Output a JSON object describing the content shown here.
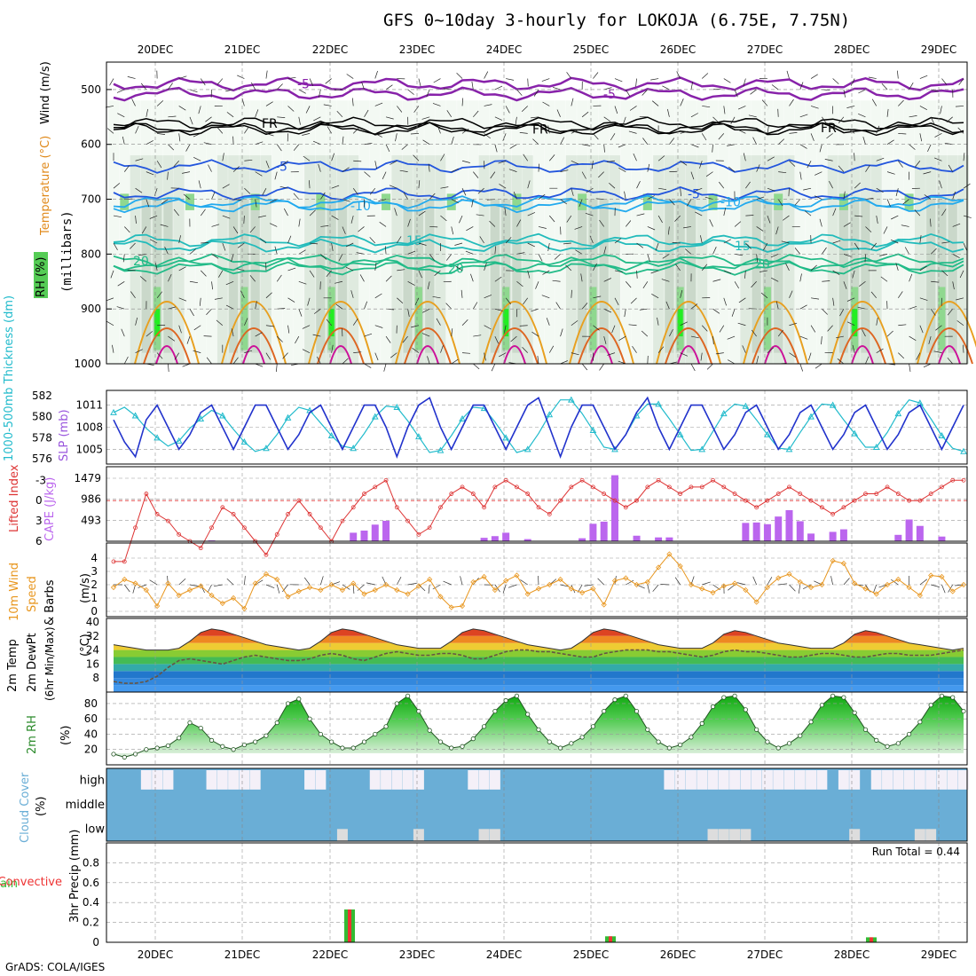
{
  "title": "GFS 0~10day 3-hourly for LOKOJA (6.75E, 7.75N)",
  "footer": "GrADS: COLA/IGES",
  "run_total_label": "Run Total = 0.44",
  "colors": {
    "slp": "#2233cc",
    "thickness": "#22bbcc",
    "lifted_index": "#dd3333",
    "cape": "#bb66ee",
    "wind": "#e8961e",
    "rh_line": "#2a8a2a",
    "cloud": "#6aaed6",
    "cloud_clear": "#f4f0f8",
    "precip_total": "#33bb33",
    "precip_conv": "#ee3333"
  },
  "chart_data": [
    {
      "panel": "upper-air",
      "type": "contour-timeseries",
      "ylabels": [
        "RH (%)",
        "Temperature (°C)",
        "Wind (m/s)",
        "(millibars)"
      ],
      "x_dates": [
        "20DEC",
        "21DEC",
        "22DEC",
        "23DEC",
        "24DEC",
        "25DEC",
        "26DEC",
        "27DEC",
        "28DEC",
        "29DEC"
      ],
      "y_ticks": [
        500,
        600,
        700,
        800,
        900,
        1000
      ],
      "ylim": [
        450,
        1000
      ],
      "isotherm_labels": [
        "-5",
        "-5",
        "FR",
        "FR",
        "FR",
        "-5",
        "-5",
        "-10",
        "-10",
        "15",
        "15",
        "20",
        "20",
        "20"
      ]
    },
    {
      "panel": "slp-thickness",
      "type": "line",
      "ylabel_left": "1000-500mb Thickness (dm)",
      "ylabel_right": "SLP (mb)",
      "left_ticks": [
        576,
        578,
        580,
        582
      ],
      "right_ticks": [
        1005,
        1008,
        1011
      ],
      "slp": [
        1009,
        1006,
        1004,
        1009,
        1011,
        1008,
        1005,
        1007,
        1010,
        1011,
        1008,
        1005,
        1008,
        1011,
        1011,
        1008,
        1005,
        1007,
        1010,
        1011,
        1008,
        1005,
        1008,
        1011,
        1011,
        1008,
        1004,
        1008,
        1011,
        1012,
        1008,
        1005,
        1008,
        1011,
        1011,
        1008,
        1005,
        1008,
        1011,
        1012,
        1008,
        1004,
        1008,
        1011,
        1011,
        1008,
        1005,
        1007,
        1010,
        1012,
        1008,
        1005,
        1008,
        1011,
        1011,
        1008,
        1005,
        1007,
        1010,
        1011,
        1008,
        1005,
        1007,
        1010,
        1011,
        1008,
        1005,
        1007,
        1010,
        1011,
        1008,
        1005,
        1007,
        1010,
        1011,
        1008,
        1005,
        1008,
        1011
      ],
      "thickness": [
        580.4,
        580.9,
        580.1,
        578.9,
        578.0,
        577.2,
        577.7,
        578.9,
        579.8,
        580.6,
        580.1,
        578.8,
        577.6,
        576.7,
        577.0,
        578.3,
        579.9,
        580.9,
        580.6,
        579.4,
        578.2,
        577.2,
        577.0,
        578.4,
        580.0,
        581.0,
        580.9,
        579.6,
        578.1,
        576.6,
        576.8,
        578.2,
        579.8,
        580.9,
        580.8,
        579.5,
        578.0,
        576.6,
        576.9,
        578.4,
        580.2,
        581.6,
        581.6,
        580.3,
        578.7,
        577.1,
        576.9,
        578.3,
        580.1,
        581.2,
        581.2,
        579.8,
        578.3,
        576.8,
        576.9,
        578.6,
        580.3,
        581.2,
        581.0,
        579.7,
        578.3,
        577.0,
        576.9,
        578.5,
        580.0,
        581.2,
        581.1,
        579.7,
        578.4,
        577.1,
        577.1,
        578.5,
        580.3,
        581.6,
        581.3,
        579.8,
        578.2,
        577.0,
        576.7
      ]
    },
    {
      "panel": "cape-li",
      "type": "bar+line",
      "ylabel_left": "Lifted Index",
      "ylabel_right": "CAPE (J/kg)",
      "li_ticks": [
        -3,
        0,
        3,
        6
      ],
      "cape_ticks": [
        493,
        986,
        1479
      ],
      "cape": [
        0,
        0,
        0,
        0,
        0,
        0,
        0,
        0,
        0,
        0,
        0,
        20,
        0,
        0,
        0,
        0,
        0,
        0,
        0,
        0,
        0,
        0,
        130,
        180,
        0,
        0,
        0,
        0,
        0,
        0,
        0,
        0,
        0,
        0,
        0,
        0,
        0,
        0,
        0,
        0,
        0,
        0,
        0,
        0,
        0,
        0,
        0,
        0,
        0,
        0,
        0,
        0,
        0,
        0,
        0,
        0,
        0,
        0,
        0,
        0,
        0,
        0,
        0,
        0,
        0,
        0,
        0,
        0,
        0,
        0,
        0,
        0,
        0,
        0,
        0,
        0,
        0,
        0,
        0
      ],
      "li": [
        9,
        9,
        4,
        -1,
        2,
        3,
        5,
        6,
        7,
        4,
        1,
        2,
        4,
        6,
        8,
        5,
        2,
        0,
        2,
        4,
        6,
        3,
        1,
        -1,
        -2,
        -3,
        1,
        3,
        5,
        4,
        1,
        -1,
        -2,
        -1,
        1,
        -2,
        -3,
        -2,
        -1,
        1,
        2,
        0,
        -2,
        -3,
        -2,
        -1,
        0,
        1,
        0,
        -2,
        -3,
        -2,
        -1,
        -2,
        -2,
        -3,
        -2,
        -1,
        0,
        1,
        0,
        -1,
        -2,
        -1,
        0,
        1,
        2,
        1,
        0,
        -1,
        -1,
        -2,
        -1,
        0,
        0,
        -1,
        -2,
        -3,
        -3
      ]
    },
    {
      "panel": "wind",
      "type": "line",
      "ylabel": "10m Wind Speed & Barbs (m/s)",
      "ticks": [
        0,
        1,
        2,
        3,
        4
      ],
      "speed": [
        1.8,
        2.4,
        2.1,
        1.6,
        0.4,
        2.1,
        1.2,
        1.6,
        1.9,
        1.2,
        0.6,
        1.0,
        0.2,
        2.1,
        2.8,
        2.4,
        1.1,
        1.5,
        1.8,
        1.6,
        2.0,
        1.6,
        2.1,
        1.3,
        1.6,
        2.0,
        1.6,
        1.3,
        1.9,
        2.4,
        1.1,
        0.3,
        0.4,
        2.2,
        2.6,
        1.6,
        2.3,
        2.7,
        1.3,
        1.7,
        2.0,
        2.4,
        1.7,
        1.4,
        1.7,
        0.5,
        2.3,
        2.5,
        2.0,
        2.2,
        3.3,
        4.3,
        3.4,
        2.0,
        1.7,
        1.4,
        1.9,
        2.1,
        1.6,
        0.7,
        1.8,
        2.5,
        2.8,
        2.2,
        1.8,
        2.0,
        3.8,
        3.6,
        2.1,
        1.7,
        1.3,
        2.0,
        2.4,
        1.8,
        1.2,
        2.7,
        2.6,
        1.5,
        2.0
      ],
      "ylim": [
        0,
        5
      ]
    },
    {
      "panel": "temperature",
      "type": "area+line",
      "ylabel": "2m Temp 2m DewPt (6hr Min/Max) (°C)",
      "ticks": [
        8,
        16,
        24,
        32,
        40
      ],
      "temp": [
        27,
        26,
        25,
        24,
        24,
        24,
        25,
        29,
        34,
        36,
        35,
        33,
        31,
        29,
        27,
        26,
        25,
        24,
        25,
        29,
        34,
        36,
        35,
        33,
        31,
        29,
        27,
        26,
        25,
        25,
        25,
        29,
        34,
        36,
        35,
        33,
        31,
        29,
        27,
        26,
        25,
        24,
        25,
        29,
        34,
        36,
        35,
        33,
        31,
        29,
        27,
        26,
        25,
        25,
        25,
        28,
        33,
        35,
        34,
        32,
        30,
        28,
        27,
        26,
        25,
        25,
        25,
        28,
        33,
        35,
        34,
        32,
        30,
        28,
        27,
        26,
        25,
        24,
        25
      ],
      "dewpt": [
        6,
        5,
        5,
        6,
        9,
        14,
        18,
        19,
        18,
        17,
        16,
        18,
        20,
        21,
        20,
        19,
        18,
        18,
        19,
        21,
        22,
        21,
        19,
        18,
        20,
        22,
        23,
        22,
        21,
        21,
        22,
        22,
        21,
        19,
        19,
        21,
        23,
        24,
        24,
        23,
        23,
        22,
        21,
        20,
        20,
        22,
        23,
        24,
        24,
        24,
        23,
        23,
        22,
        21,
        20,
        21,
        23,
        24,
        23,
        23,
        22,
        21,
        20,
        20,
        21,
        22,
        22,
        21,
        20,
        20,
        21,
        22,
        22,
        21,
        21,
        21,
        22,
        23,
        24
      ],
      "ylim": [
        0,
        42
      ]
    },
    {
      "panel": "rh",
      "type": "area+line",
      "ylabel": "2m RH (%)",
      "ticks": [
        20,
        40,
        60,
        80
      ],
      "rh": [
        14,
        10,
        14,
        20,
        22,
        25,
        35,
        55,
        48,
        32,
        24,
        20,
        26,
        30,
        38,
        55,
        80,
        86,
        60,
        40,
        30,
        22,
        22,
        30,
        40,
        50,
        80,
        90,
        70,
        45,
        30,
        22,
        24,
        34,
        50,
        70,
        84,
        90,
        66,
        46,
        30,
        22,
        28,
        36,
        50,
        70,
        85,
        90,
        70,
        46,
        30,
        22,
        26,
        36,
        54,
        76,
        88,
        90,
        72,
        46,
        30,
        22,
        28,
        38,
        56,
        78,
        90,
        88,
        68,
        46,
        32,
        24,
        28,
        40,
        56,
        78,
        90,
        88,
        70
      ],
      "ylim": [
        0,
        95
      ]
    },
    {
      "panel": "cloud",
      "type": "bar",
      "ylabel": "Cloud Cover (%)",
      "levels": [
        "high",
        "middle",
        "low"
      ]
    },
    {
      "panel": "precip",
      "type": "bar",
      "ylabel": "3hr Precip (mm)",
      "series_labels": [
        "Total / Rain",
        "Convective"
      ],
      "ticks": [
        0,
        0.2,
        0.4,
        0.6,
        0.8
      ],
      "ylim": [
        0,
        1.0
      ],
      "events": [
        {
          "day": "22DEC",
          "total": 0.33,
          "conv": 0.33
        },
        {
          "day": "25DEC",
          "total": 0.06,
          "conv": 0.06
        },
        {
          "day": "28DEC",
          "total": 0.05,
          "conv": 0.05
        }
      ]
    }
  ]
}
